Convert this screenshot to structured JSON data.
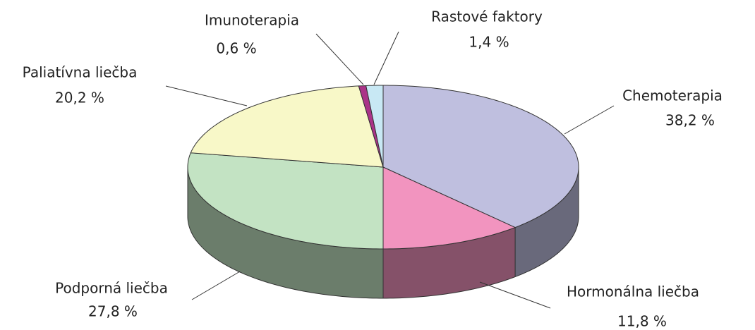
{
  "chart_data": {
    "type": "pie",
    "categories": [
      "Chemoterapia",
      "Hormonálna liečba",
      "Podporná liečba",
      "Paliatívna liečba",
      "Imunoterapia",
      "Rastové faktory"
    ],
    "values": [
      38.2,
      11.8,
      27.8,
      20.2,
      0.6,
      1.4
    ],
    "value_labels": [
      "38,2 %",
      "11,8 %",
      "27,8 %",
      "20,2 %",
      "0,6 %",
      "1,4 %"
    ],
    "colors": [
      "#bfbfdf",
      "#f294bf",
      "#c3e3c3",
      "#f8f8c8",
      "#aa3388",
      "#c8e8f4"
    ]
  }
}
